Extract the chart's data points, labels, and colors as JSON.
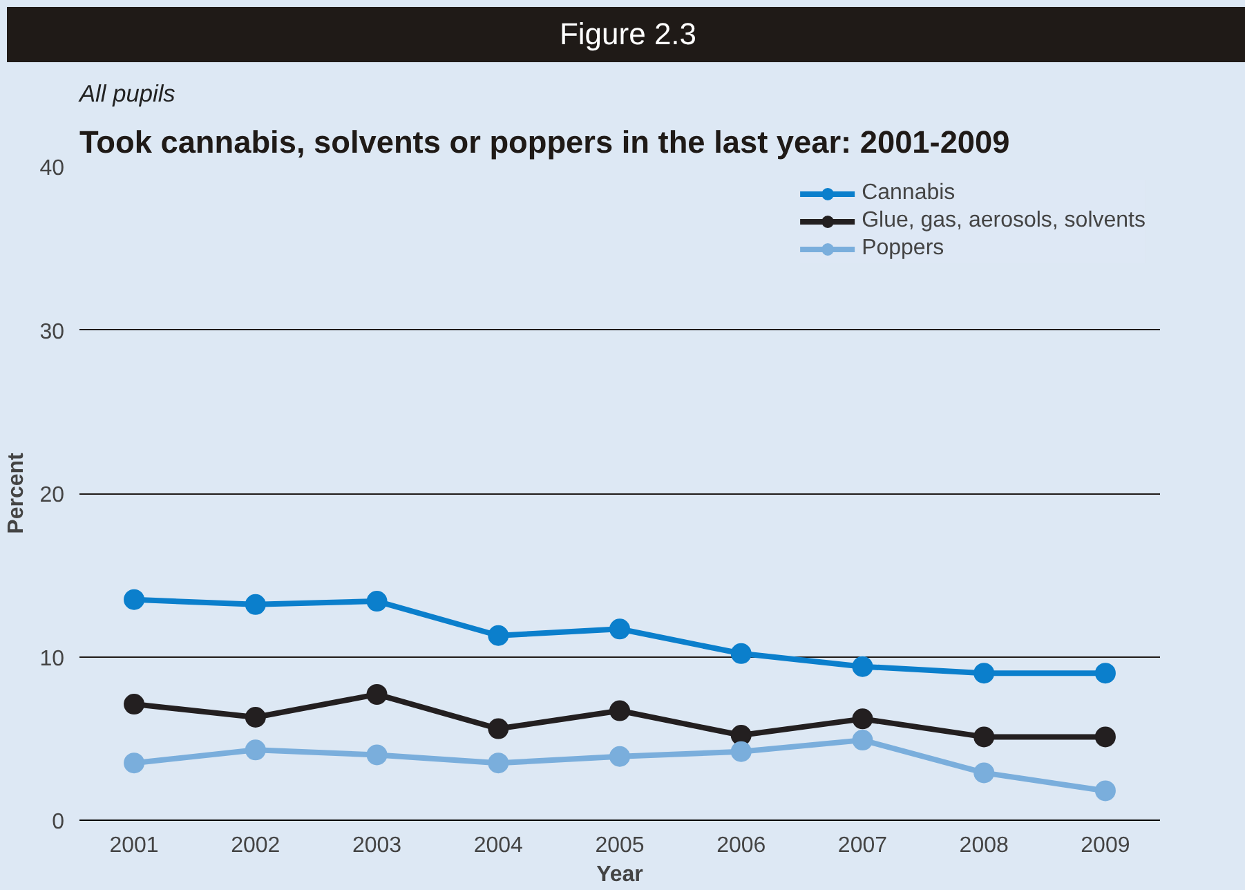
{
  "chart_data": {
    "type": "line",
    "title": "Took cannabis, solvents or poppers in the last year: 2001-2009",
    "subtitle": "All pupils",
    "xlabel": "Year",
    "ylabel": "Percent",
    "annotations": [
      "Figure 2.3"
    ],
    "categories": [
      "2001",
      "2002",
      "2003",
      "2004",
      "2005",
      "2006",
      "2007",
      "2008",
      "2009"
    ],
    "series": [
      {
        "name": "Cannabis",
        "color": "#0b7fcc",
        "values": [
          13.5,
          13.2,
          13.4,
          11.3,
          11.7,
          10.2,
          9.4,
          9.0,
          9.0
        ]
      },
      {
        "name": "Glue, gas, aerosols, solvents",
        "color": "#231f20",
        "values": [
          7.1,
          6.3,
          7.7,
          5.6,
          6.7,
          5.2,
          6.2,
          5.1,
          5.1
        ]
      },
      {
        "name": "Poppers",
        "color": "#7aaedc",
        "values": [
          3.5,
          4.3,
          4.0,
          3.5,
          3.9,
          4.2,
          4.9,
          2.9,
          1.8
        ]
      }
    ],
    "ylim": [
      0,
      40
    ],
    "yticks": [
      0,
      10,
      20,
      30,
      40
    ],
    "grid": "y",
    "legend": "top right",
    "marker": "circle",
    "line_style": "solid"
  }
}
